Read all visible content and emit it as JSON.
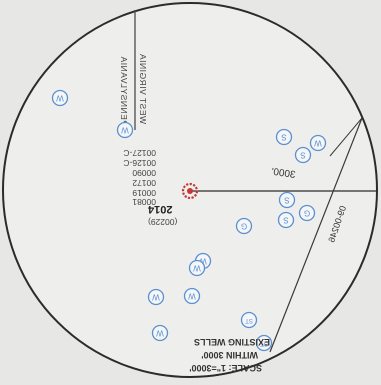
{
  "state_line": {
    "west_virginia_label": "WEST VIRGINIA",
    "pennsylvania_label": "PENNSYLVANIA"
  },
  "well_number_list": [
    "00127-C",
    "00126-C",
    "00090",
    "00172",
    "00019",
    "00081"
  ],
  "center_well": {
    "number": "2014",
    "api_suffix": "(00229)"
  },
  "radius_label": "3000'",
  "lease_line_label": "09-00246",
  "legend": {
    "line1": "EXISTING WELLS",
    "line2": "WITHIN 3000'",
    "line3": "SCALE: 1\"=3000'"
  },
  "well_symbols": {
    "w": "W",
    "s": "S",
    "g": "G",
    "st": "ST"
  },
  "colors": {
    "ink": "#2b2b2b",
    "well_symbol": "#5b8fd0",
    "center_marker": "#c43838",
    "circle_fill": "#eeeeec",
    "background": "#e7e8e6"
  }
}
